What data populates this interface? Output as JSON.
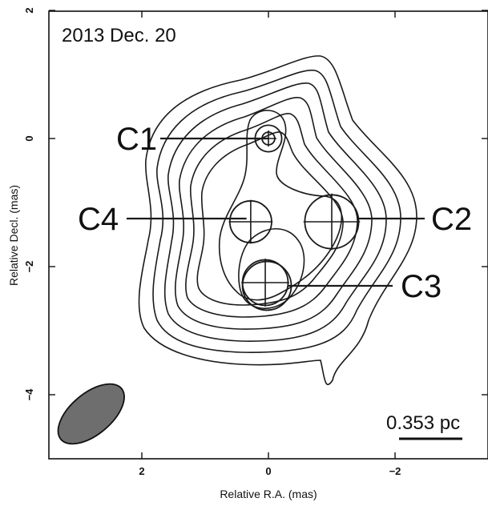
{
  "chart_data": {
    "type": "contour-map",
    "annotation": "2013 Dec. 20",
    "xlabel": "Relative R.A.  (mas)",
    "ylabel": "Relative Decl.  (mas)",
    "xlim": [
      3.4,
      -3.4
    ],
    "ylim": [
      -5,
      2
    ],
    "x_ticks": [
      2,
      0,
      -2
    ],
    "x_tick_labels": [
      "2",
      "0",
      "−2"
    ],
    "y_ticks": [
      2,
      0,
      -2,
      -4
    ],
    "y_tick_labels": [
      "2",
      "0",
      "−2",
      "−4"
    ],
    "scale_bar": {
      "label": "0.353 pc",
      "length_mas": 1.0
    },
    "components": [
      {
        "name": "C1",
        "ra": 0.0,
        "dec": 0.0,
        "diameter_mas": 0.2
      },
      {
        "name": "C2",
        "ra": -1.0,
        "dec": -1.3,
        "diameter_mas": 0.85
      },
      {
        "name": "C3",
        "ra": 0.05,
        "dec": -2.25,
        "diameter_mas": 0.72
      },
      {
        "name": "C4",
        "ra": 0.28,
        "dec": -1.3,
        "diameter_mas": 0.66
      }
    ],
    "beam": {
      "ra": 2.8,
      "dec": -4.3,
      "major_mas": 1.25,
      "minor_mas": 0.65,
      "fill": "#6e6e6e"
    },
    "contour_levels": 8
  }
}
